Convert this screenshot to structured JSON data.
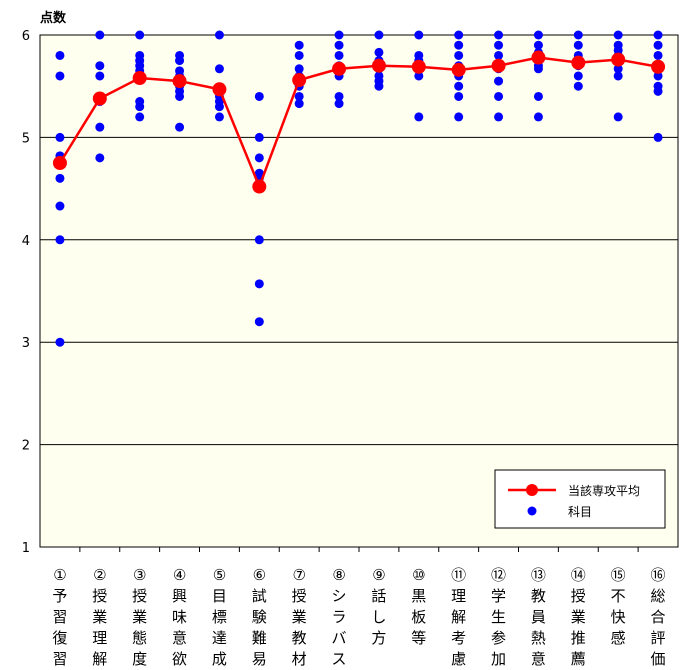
{
  "chart_data": {
    "type": "scatter",
    "ylabel": "点数",
    "ylim": [
      1,
      6
    ],
    "yticks": [
      "1",
      "2",
      "3",
      "4",
      "5",
      "6"
    ],
    "grid": true,
    "legend_position": "bottom-right",
    "categories": [
      "①予習復習",
      "②授業理解",
      "③授業態度",
      "④興味意欲",
      "⑤目標達成",
      "⑥試験難易",
      "⑦授業教材",
      "⑧シラバス",
      "⑨話し方",
      "⑩黒板等",
      "⑪理解考慮",
      "⑫学生参加",
      "⑬教員熱意",
      "⑭授業推薦",
      "⑮不快感",
      "⑯総合評価"
    ],
    "category_lines": [
      [
        "①",
        "予",
        "習",
        "復",
        "習"
      ],
      [
        "②",
        "授",
        "業",
        "理",
        "解"
      ],
      [
        "③",
        "授",
        "業",
        "態",
        "度"
      ],
      [
        "④",
        "興",
        "味",
        "意",
        "欲"
      ],
      [
        "⑤",
        "目",
        "標",
        "達",
        "成"
      ],
      [
        "⑥",
        "試",
        "験",
        "難",
        "易"
      ],
      [
        "⑦",
        "授",
        "業",
        "教",
        "材"
      ],
      [
        "⑧",
        "シ",
        "ラ",
        "バ",
        "ス"
      ],
      [
        "⑨",
        "話",
        "し",
        "方"
      ],
      [
        "⑩",
        "黒",
        "板",
        "等"
      ],
      [
        "⑪",
        "理",
        "解",
        "考",
        "慮"
      ],
      [
        "⑫",
        "学",
        "生",
        "参",
        "加"
      ],
      [
        "⑬",
        "教",
        "員",
        "熱",
        "意"
      ],
      [
        "⑭",
        "授",
        "業",
        "推",
        "薦"
      ],
      [
        "⑮",
        "不",
        "快",
        "感"
      ],
      [
        "⑯",
        "総",
        "合",
        "評",
        "価"
      ]
    ],
    "series": [
      {
        "name": "当該専攻平均",
        "kind": "line",
        "color": "#ff0000",
        "values": [
          4.75,
          5.38,
          5.58,
          5.55,
          5.47,
          4.52,
          5.56,
          5.67,
          5.7,
          5.69,
          5.66,
          5.7,
          5.78,
          5.73,
          5.76,
          5.69
        ]
      },
      {
        "name": "科目",
        "kind": "scatter",
        "color": "#0000ff",
        "points": [
          [
            5.8,
            5.6,
            5.0,
            4.82,
            4.78,
            4.6,
            4.33,
            4.0,
            3.0
          ],
          [
            6.0,
            5.7,
            5.6,
            5.4,
            5.35,
            5.1,
            4.8
          ],
          [
            6.0,
            5.8,
            5.75,
            5.7,
            5.65,
            5.6,
            5.35,
            5.3,
            5.2
          ],
          [
            5.8,
            5.75,
            5.65,
            5.6,
            5.5,
            5.45,
            5.4,
            5.1
          ],
          [
            6.0,
            5.67,
            5.45,
            5.4,
            5.35,
            5.3,
            5.2
          ],
          [
            5.4,
            5.0,
            4.8,
            4.65,
            4.6,
            4.5,
            4.0,
            3.57,
            3.2
          ],
          [
            5.9,
            5.8,
            5.67,
            5.6,
            5.5,
            5.4,
            5.33
          ],
          [
            6.0,
            5.9,
            5.8,
            5.7,
            5.65,
            5.6,
            5.4,
            5.33
          ],
          [
            6.0,
            5.83,
            5.75,
            5.67,
            5.6,
            5.55,
            5.5
          ],
          [
            6.0,
            5.8,
            5.75,
            5.67,
            5.6,
            5.2
          ],
          [
            6.0,
            5.9,
            5.8,
            5.7,
            5.6,
            5.5,
            5.4,
            5.2
          ],
          [
            6.0,
            5.9,
            5.8,
            5.7,
            5.67,
            5.55,
            5.4,
            5.2
          ],
          [
            6.0,
            5.9,
            5.83,
            5.75,
            5.7,
            5.67,
            5.4,
            5.2
          ],
          [
            6.0,
            5.9,
            5.8,
            5.75,
            5.7,
            5.6,
            5.5
          ],
          [
            6.0,
            5.9,
            5.85,
            5.8,
            5.67,
            5.6,
            5.2
          ],
          [
            6.0,
            5.9,
            5.8,
            5.7,
            5.6,
            5.5,
            5.45,
            5.0
          ]
        ]
      }
    ]
  }
}
